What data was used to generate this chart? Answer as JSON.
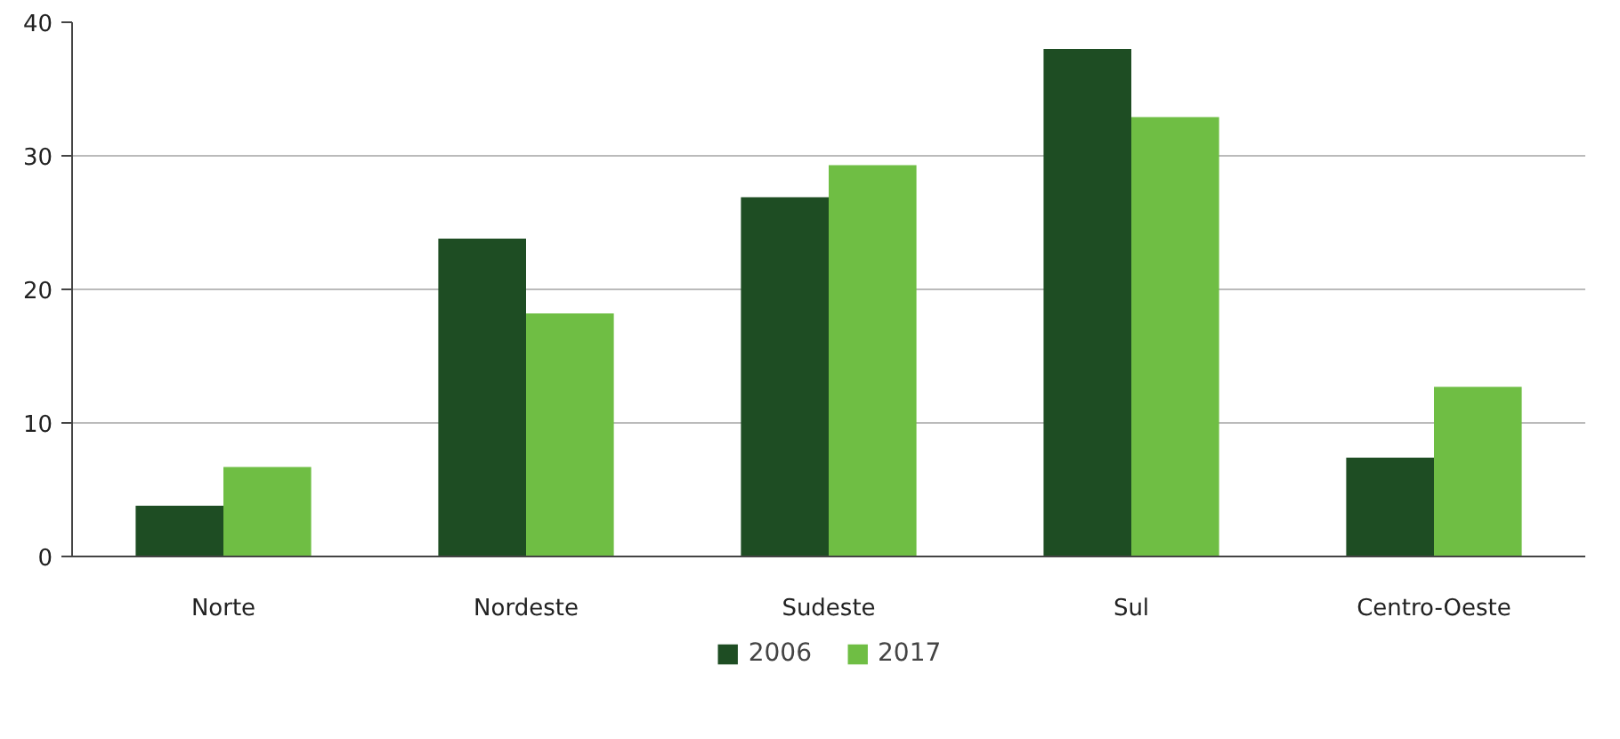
{
  "chart_data": {
    "type": "bar",
    "categories": [
      "Norte",
      "Nordeste",
      "Sudeste",
      "Sul",
      "Centro-Oeste"
    ],
    "series": [
      {
        "name": "2006",
        "color": "#1e4d23",
        "values": [
          3.8,
          23.8,
          26.9,
          38.0,
          7.4
        ]
      },
      {
        "name": "2017",
        "color": "#6fbe44",
        "values": [
          6.7,
          18.2,
          29.3,
          32.9,
          12.7
        ]
      }
    ],
    "ylim": [
      0,
      40
    ],
    "yticks": [
      0,
      10,
      20,
      30,
      40
    ],
    "grid": "y",
    "legend": "bottom"
  }
}
